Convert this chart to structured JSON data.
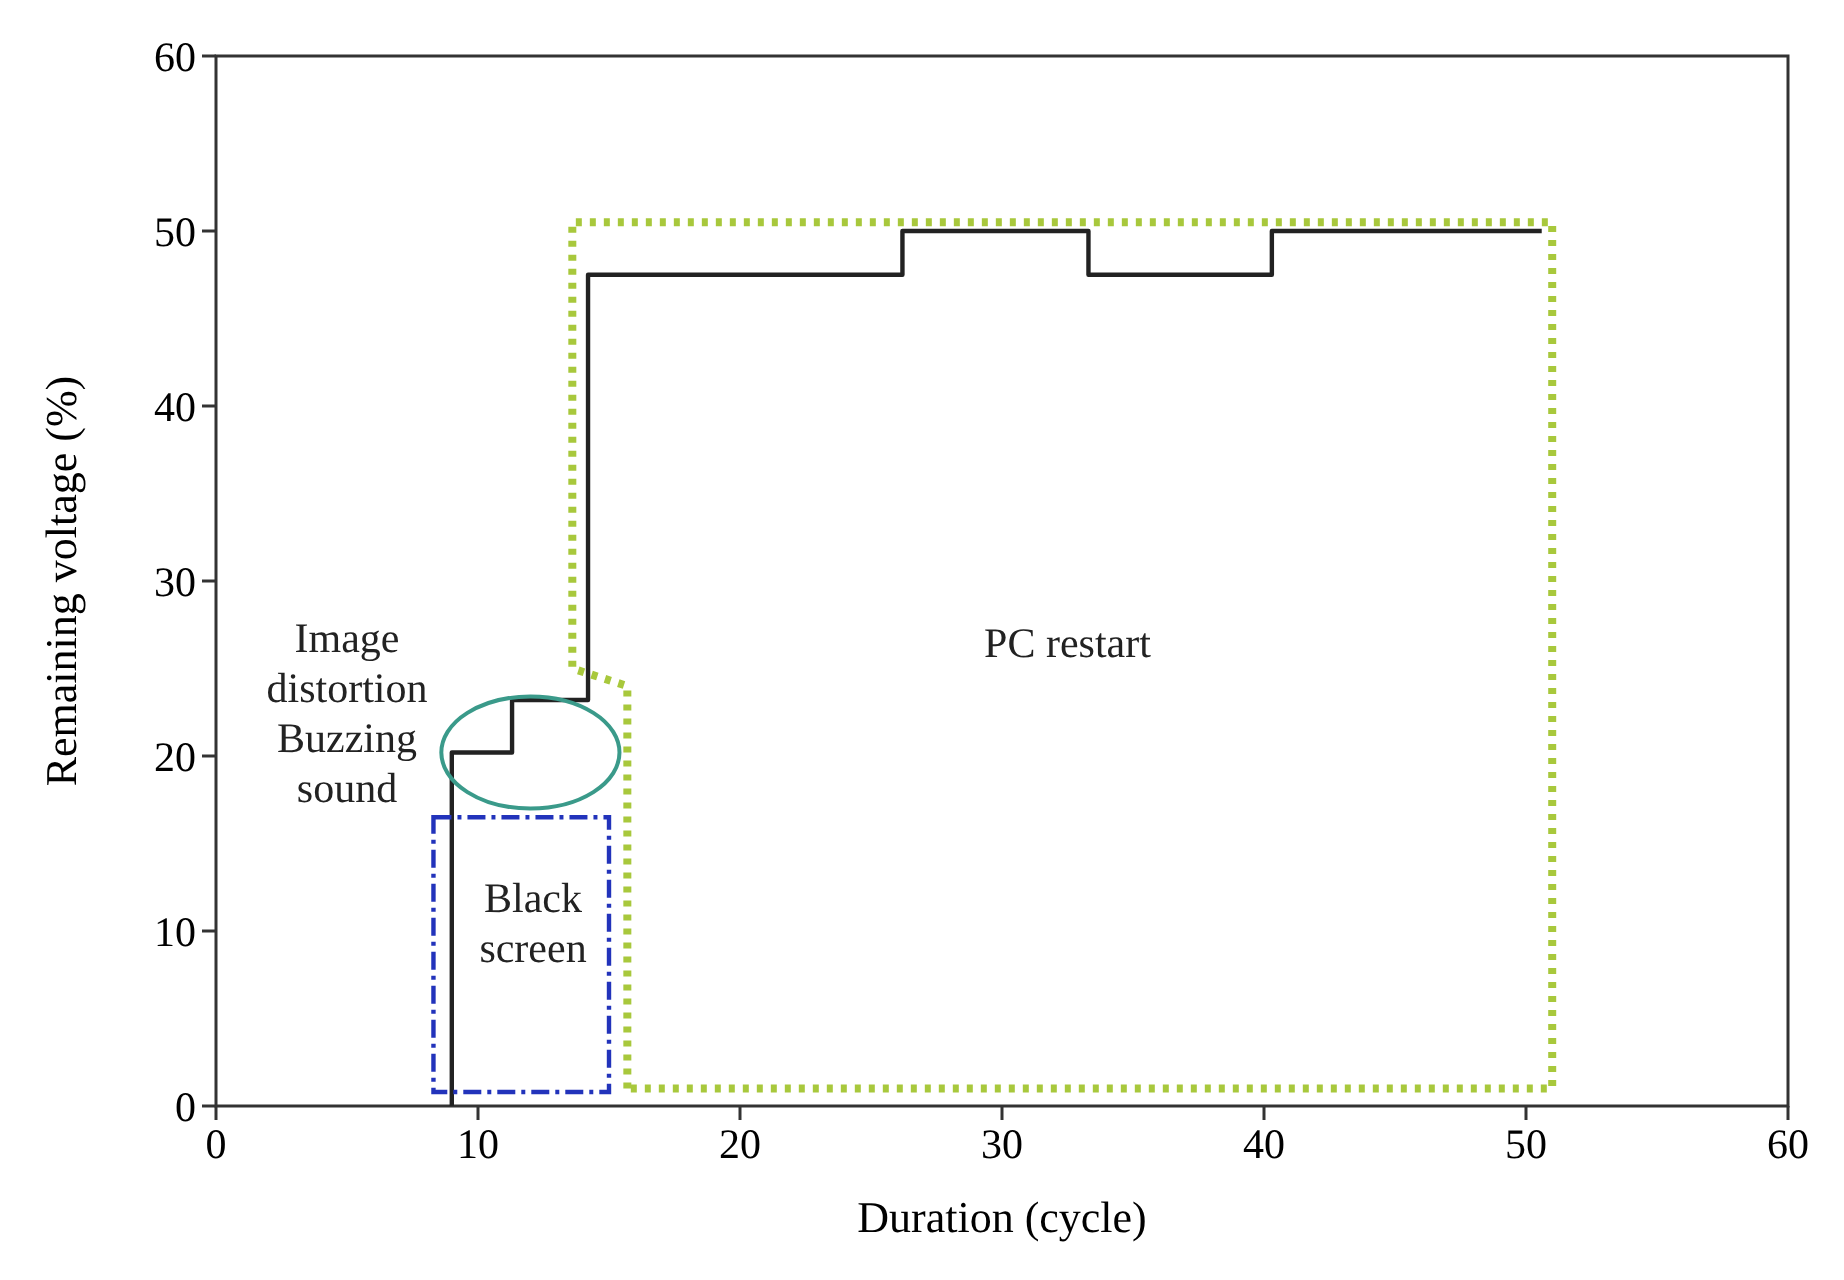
{
  "chart_data": {
    "type": "step",
    "xlabel": "Duration (cycle)",
    "ylabel": "Remaining voltage (%)",
    "xlim": [
      0,
      60
    ],
    "ylim": [
      0,
      60
    ],
    "xticks": [
      0,
      10,
      20,
      30,
      40,
      50,
      60
    ],
    "yticks": [
      0,
      10,
      20,
      30,
      40,
      50,
      60
    ],
    "grid": false,
    "series": [
      {
        "color": "#222222",
        "line_style": "solid",
        "x": [
          9,
          9,
          11.3,
          14.2,
          26.2,
          33.3,
          40.3,
          50.6
        ],
        "values": [
          0,
          20.2,
          23.2,
          47.5,
          50,
          47.5,
          50,
          50
        ]
      }
    ],
    "annotations": [
      "Image\ndistortion\nBuzzing\nsound",
      "Black\nscreen",
      "PC restart"
    ]
  }
}
